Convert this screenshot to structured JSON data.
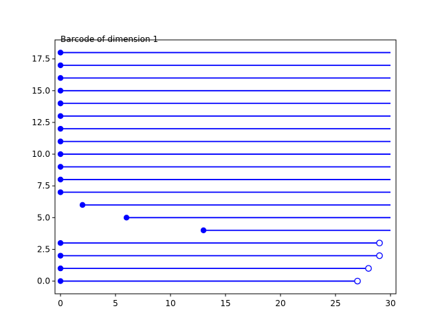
{
  "chart_data": {
    "type": "barcode",
    "title": "Barcode of dimension 1",
    "xlabel": "",
    "ylabel": "",
    "xlim": [
      -0.5,
      30.5
    ],
    "ylim": [
      -1.0,
      19.0
    ],
    "x_ticks": [
      0,
      5,
      10,
      15,
      20,
      25,
      30
    ],
    "x_tick_labels": [
      "0",
      "5",
      "10",
      "15",
      "20",
      "25",
      "30"
    ],
    "y_ticks": [
      0.0,
      2.5,
      5.0,
      7.5,
      10.0,
      12.5,
      15.0,
      17.5
    ],
    "y_tick_labels": [
      "0.0",
      "2.5",
      "5.0",
      "7.5",
      "10.0",
      "12.5",
      "15.0",
      "17.5"
    ],
    "grid": false,
    "bar_color": "#0000ff",
    "bars": [
      {
        "index": 0,
        "birth": 0,
        "death": 27,
        "open_end": true
      },
      {
        "index": 1,
        "birth": 0,
        "death": 28,
        "open_end": true
      },
      {
        "index": 2,
        "birth": 0,
        "death": 29,
        "open_end": true
      },
      {
        "index": 3,
        "birth": 0,
        "death": 29,
        "open_end": true
      },
      {
        "index": 4,
        "birth": 13,
        "death": 30,
        "open_end": false
      },
      {
        "index": 5,
        "birth": 6,
        "death": 30,
        "open_end": false
      },
      {
        "index": 6,
        "birth": 2,
        "death": 30,
        "open_end": false
      },
      {
        "index": 7,
        "birth": 0,
        "death": 30,
        "open_end": false
      },
      {
        "index": 8,
        "birth": 0,
        "death": 30,
        "open_end": false
      },
      {
        "index": 9,
        "birth": 0,
        "death": 30,
        "open_end": false
      },
      {
        "index": 10,
        "birth": 0,
        "death": 30,
        "open_end": false
      },
      {
        "index": 11,
        "birth": 0,
        "death": 30,
        "open_end": false
      },
      {
        "index": 12,
        "birth": 0,
        "death": 30,
        "open_end": false
      },
      {
        "index": 13,
        "birth": 0,
        "death": 30,
        "open_end": false
      },
      {
        "index": 14,
        "birth": 0,
        "death": 30,
        "open_end": false
      },
      {
        "index": 15,
        "birth": 0,
        "death": 30,
        "open_end": false
      },
      {
        "index": 16,
        "birth": 0,
        "death": 30,
        "open_end": false
      },
      {
        "index": 17,
        "birth": 0,
        "death": 30,
        "open_end": false
      },
      {
        "index": 18,
        "birth": 0,
        "death": 30,
        "open_end": false
      }
    ]
  }
}
